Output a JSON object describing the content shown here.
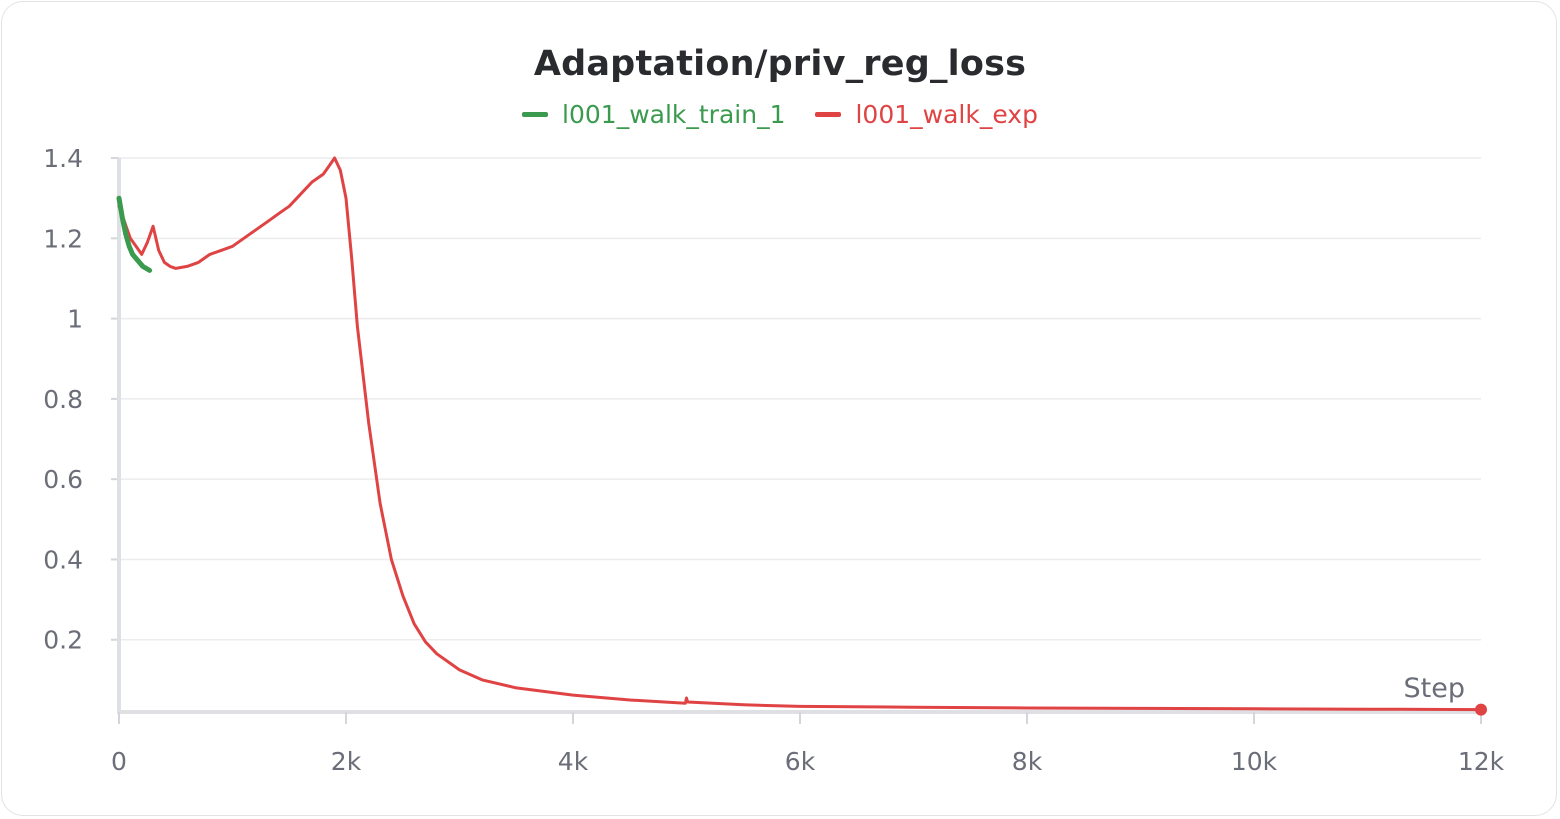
{
  "chart_data": {
    "type": "line",
    "title": "Adaptation/priv_reg_loss",
    "xlabel": "Step",
    "ylabel": "",
    "xlim": [
      0,
      12000
    ],
    "ylim": [
      0.02,
      1.42
    ],
    "x_ticks": [
      0,
      2000,
      4000,
      6000,
      8000,
      10000,
      12000
    ],
    "x_tick_labels": [
      "0",
      "2k",
      "4k",
      "6k",
      "8k",
      "10k",
      "12k"
    ],
    "y_ticks": [
      0.2,
      0.4,
      0.6,
      0.8,
      1,
      1.2,
      1.4
    ],
    "y_tick_labels": [
      "0.2",
      "0.4",
      "0.6",
      "0.8",
      "1",
      "1.2",
      "1.4"
    ],
    "grid": true,
    "legend_position": "top-center",
    "series": [
      {
        "name": "l001_walk_train_1",
        "color": "#3a9a4e",
        "x": [
          0,
          30,
          60,
          90,
          120,
          150,
          180,
          210,
          240,
          270
        ],
        "y": [
          1.3,
          1.25,
          1.21,
          1.18,
          1.16,
          1.15,
          1.14,
          1.13,
          1.125,
          1.12
        ]
      },
      {
        "name": "l001_walk_exp",
        "color": "#e04343",
        "x": [
          0,
          50,
          100,
          150,
          200,
          250,
          300,
          350,
          400,
          450,
          500,
          600,
          700,
          800,
          900,
          1000,
          1100,
          1200,
          1300,
          1400,
          1500,
          1600,
          1700,
          1800,
          1850,
          1900,
          1950,
          2000,
          2050,
          2100,
          2200,
          2300,
          2400,
          2500,
          2600,
          2700,
          2800,
          3000,
          3200,
          3500,
          4000,
          4500,
          4990,
          5000,
          5010,
          5500,
          6000,
          7000,
          8000,
          9000,
          10000,
          11000,
          12000
        ],
        "y": [
          1.28,
          1.24,
          1.2,
          1.18,
          1.16,
          1.19,
          1.23,
          1.17,
          1.14,
          1.13,
          1.125,
          1.13,
          1.14,
          1.16,
          1.17,
          1.18,
          1.2,
          1.22,
          1.24,
          1.26,
          1.28,
          1.31,
          1.34,
          1.36,
          1.38,
          1.4,
          1.37,
          1.3,
          1.15,
          0.98,
          0.74,
          0.54,
          0.4,
          0.31,
          0.24,
          0.195,
          0.165,
          0.125,
          0.1,
          0.08,
          0.062,
          0.05,
          0.042,
          0.055,
          0.045,
          0.038,
          0.034,
          0.032,
          0.03,
          0.029,
          0.028,
          0.027,
          0.026
        ]
      }
    ]
  }
}
